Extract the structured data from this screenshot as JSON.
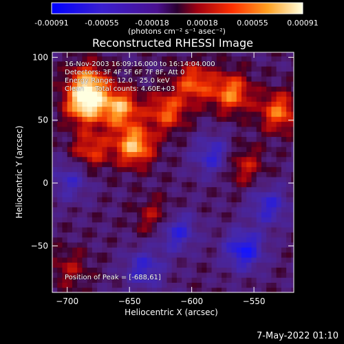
{
  "colorbar": {
    "tick_labels": [
      "-0.00091",
      "-0.00055",
      "-0.00018",
      "0.00018",
      "0.00055",
      "0.00091"
    ],
    "units_label": "(photons cm⁻² s⁻¹ asec⁻²)",
    "range": [
      -0.00091,
      0.00091
    ]
  },
  "chart_data": {
    "type": "heatmap",
    "title": "Reconstructed RHESSI Image",
    "xlabel": "Heliocentric X (arcsec)",
    "ylabel": "Heliocentric Y (arcsec)",
    "xlim": [
      -712,
      -518
    ],
    "ylim": [
      -87,
      104
    ],
    "x_ticks": [
      -700,
      -650,
      -600,
      -550
    ],
    "y_ticks": [
      -50,
      0,
      50,
      100
    ],
    "x_tick_labels": [
      "−700",
      "−650",
      "−600",
      "−550"
    ],
    "y_tick_labels": [
      "−50",
      "0",
      "50",
      "100"
    ],
    "annotations": [
      "16-Nov-2003 16:09:16.000 to 16:14:04.000",
      "Detectors: 3F 4F 5F 6F 7F 8F, Att 0",
      "Energy Range: 12.0 - 25.0 keV",
      "Clean     Total counts: 4.60E+03"
    ],
    "peak_label": "Position of Peak = [-688,61]",
    "peak": [
      -688,
      61
    ],
    "bright_sources": [
      {
        "x": -688,
        "y": 61,
        "v": 0.00091
      },
      {
        "x": -685,
        "y": 78,
        "v": 0.0007
      },
      {
        "x": -660,
        "y": 58,
        "v": 0.0008
      },
      {
        "x": -648,
        "y": 28,
        "v": 0.00085
      },
      {
        "x": -622,
        "y": 55,
        "v": 0.0006
      },
      {
        "x": -600,
        "y": 78,
        "v": 0.0006
      },
      {
        "x": -570,
        "y": 70,
        "v": 0.0007
      },
      {
        "x": -532,
        "y": 55,
        "v": 0.00065
      },
      {
        "x": -683,
        "y": 25,
        "v": 0.0005
      },
      {
        "x": -630,
        "y": -30,
        "v": 0.0004
      },
      {
        "x": -560,
        "y": 12,
        "v": 0.0004
      },
      {
        "x": -700,
        "y": -70,
        "v": 0.0003
      }
    ],
    "dark_sources": [
      {
        "x": -615,
        "y": -40,
        "v": -0.0006
      },
      {
        "x": -560,
        "y": -55,
        "v": -0.0007
      },
      {
        "x": -585,
        "y": 20,
        "v": -0.0005
      },
      {
        "x": -640,
        "y": -70,
        "v": -0.0005
      },
      {
        "x": -700,
        "y": 0,
        "v": -0.0004
      },
      {
        "x": -540,
        "y": -20,
        "v": -0.0005
      }
    ]
  },
  "footer": {
    "timestamp": "7-May-2022 01:10"
  },
  "colors": {
    "background": "#000000",
    "text": "#ffffff"
  }
}
